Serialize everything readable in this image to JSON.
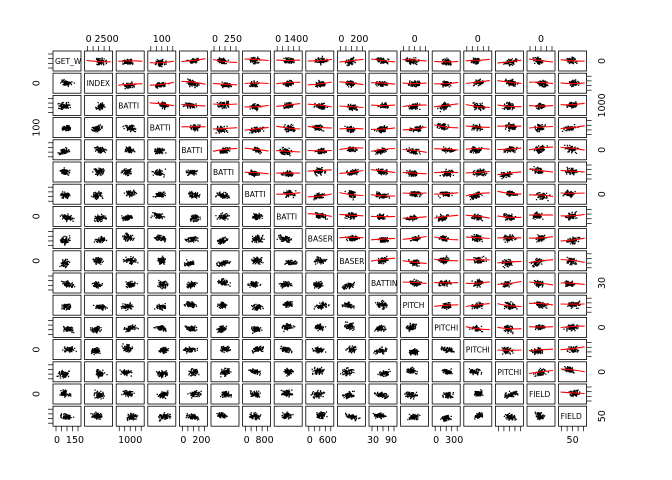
{
  "chart_data": {
    "type": "scatter-matrix",
    "point_color": "#000000",
    "smoother_color": "#ff0000",
    "variables": [
      "GET_W",
      "INDEX",
      "BATTI",
      "BATTI",
      "BATTI",
      "BATTI",
      "BATTI",
      "BATTI",
      "BASER",
      "BASER",
      "BATTIN",
      "PITCH",
      "PITCHI",
      "PITCHI",
      "PITCHI",
      "FIELD",
      "FIELD"
    ],
    "top_axis_labels": [
      {
        "col": 1,
        "labels": [
          "0",
          "2500"
        ]
      },
      {
        "col": 3,
        "labels": [
          "100"
        ]
      },
      {
        "col": 5,
        "labels": [
          "0",
          "250"
        ]
      },
      {
        "col": 7,
        "labels": [
          "0",
          "1400"
        ]
      },
      {
        "col": 9,
        "labels": [
          "0",
          "200"
        ]
      },
      {
        "col": 11,
        "labels": [
          "0"
        ]
      },
      {
        "col": 13,
        "labels": [
          "0"
        ]
      },
      {
        "col": 15,
        "labels": [
          "0"
        ]
      }
    ],
    "bottom_axis_labels": [
      {
        "col": 0,
        "labels": [
          "0",
          "150"
        ]
      },
      {
        "col": 2,
        "labels": [
          "1000"
        ]
      },
      {
        "col": 4,
        "labels": [
          "0",
          "200"
        ]
      },
      {
        "col": 6,
        "labels": [
          "0",
          "800"
        ]
      },
      {
        "col": 8,
        "labels": [
          "0",
          "600"
        ]
      },
      {
        "col": 10,
        "labels": [
          "30",
          "90"
        ]
      },
      {
        "col": 12,
        "labels": [
          "0",
          "300"
        ]
      },
      {
        "col": 16,
        "labels": [
          "50"
        ]
      }
    ],
    "left_axis_labels": [
      {
        "row": 2,
        "labels": [
          "0"
        ]
      },
      {
        "row": 4,
        "labels": [
          "100"
        ]
      },
      {
        "row": 8,
        "labels": [
          "0"
        ]
      },
      {
        "row": 10,
        "labels": [
          "0"
        ]
      },
      {
        "row": 14,
        "labels": [
          "0"
        ]
      },
      {
        "row": 16,
        "labels": [
          "0"
        ]
      }
    ],
    "right_axis_labels": [
      {
        "row": 1,
        "labels": [
          "0"
        ]
      },
      {
        "row": 3,
        "labels": [
          "1000"
        ]
      },
      {
        "row": 5,
        "labels": [
          "0"
        ]
      },
      {
        "row": 7,
        "labels": [
          "0"
        ]
      },
      {
        "row": 11,
        "labels": [
          "30"
        ]
      },
      {
        "row": 13,
        "labels": [
          "0"
        ]
      },
      {
        "row": 15,
        "labels": [
          "0"
        ]
      },
      {
        "row": 17,
        "labels": [
          "50"
        ]
      }
    ]
  }
}
